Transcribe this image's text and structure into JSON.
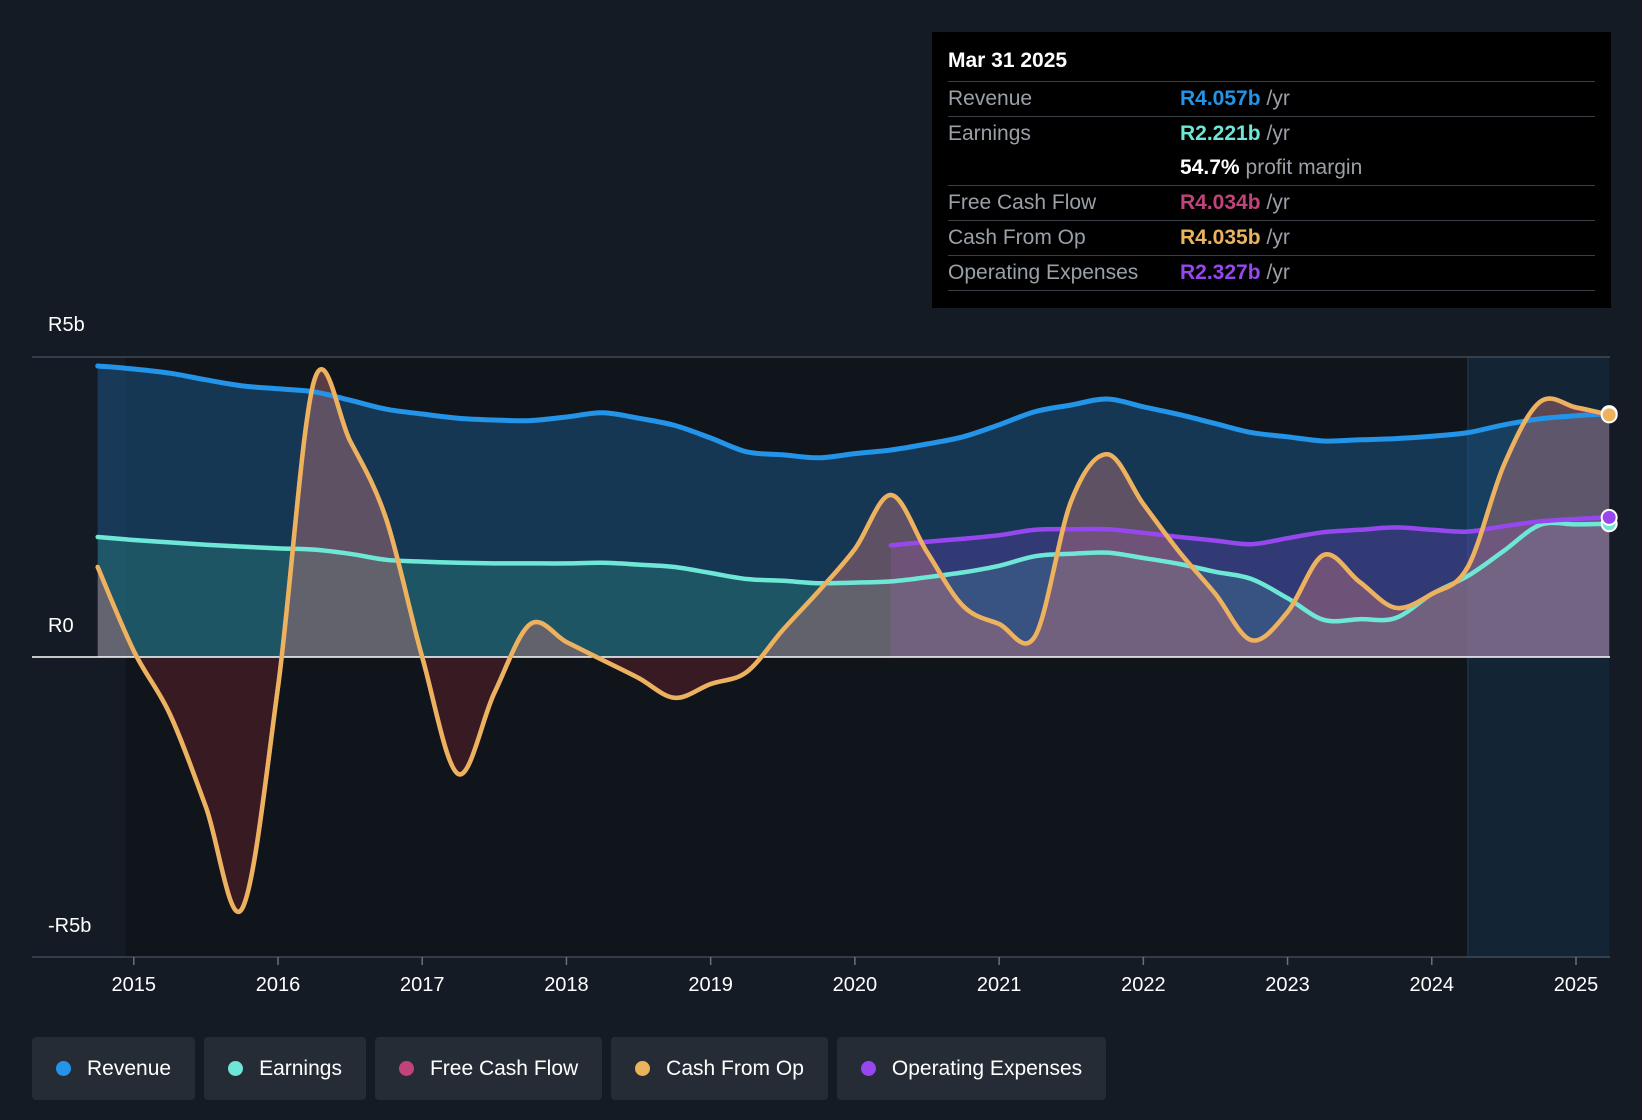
{
  "colors": {
    "revenue": "#2394e8",
    "earnings": "#6ee7d6",
    "fcf": "#c0437a",
    "cfo": "#ecb35f",
    "opex": "#9747ee"
  },
  "tooltip": {
    "date": "Mar 31 2025",
    "rows": [
      {
        "label": "Revenue",
        "value": "R4.057b",
        "unit": "/yr"
      },
      {
        "label": "Earnings",
        "value": "R2.221b",
        "unit": "/yr"
      },
      {
        "label": "",
        "value": "54.7%",
        "unit": "profit margin"
      },
      {
        "label": "Free Cash Flow",
        "value": "R4.034b",
        "unit": "/yr"
      },
      {
        "label": "Cash From Op",
        "value": "R4.035b",
        "unit": "/yr"
      },
      {
        "label": "Operating Expenses",
        "value": "R2.327b",
        "unit": "/yr"
      }
    ]
  },
  "legend": [
    "Revenue",
    "Earnings",
    "Free Cash Flow",
    "Cash From Op",
    "Operating Expenses"
  ],
  "chart_data": {
    "type": "line",
    "title": "",
    "y_tick_labels": [
      "R5b",
      "R0",
      "-R5b"
    ],
    "y_ticks": [
      5,
      0,
      -5
    ],
    "ylim": [
      -5,
      5
    ],
    "xlim": [
      2014.5,
      2025.23
    ],
    "x_ticks": [
      2015,
      2016,
      2017,
      2018,
      2019,
      2020,
      2021,
      2022,
      2023,
      2024,
      2025
    ],
    "x_tick_labels": [
      "2015",
      "2016",
      "2017",
      "2018",
      "2019",
      "2020",
      "2021",
      "2022",
      "2023",
      "2024",
      "2025"
    ],
    "forecast_start": 2024.25,
    "series": [
      {
        "name": "Revenue",
        "key": "revenue",
        "points": [
          [
            2014.75,
            4.85
          ],
          [
            2015.0,
            4.8
          ],
          [
            2015.25,
            4.73
          ],
          [
            2015.5,
            4.62
          ],
          [
            2015.75,
            4.52
          ],
          [
            2016.0,
            4.47
          ],
          [
            2016.25,
            4.42
          ],
          [
            2016.5,
            4.28
          ],
          [
            2016.75,
            4.13
          ],
          [
            2017.0,
            4.05
          ],
          [
            2017.25,
            3.98
          ],
          [
            2017.5,
            3.95
          ],
          [
            2017.75,
            3.94
          ],
          [
            2018.0,
            4.0
          ],
          [
            2018.25,
            4.07
          ],
          [
            2018.5,
            3.98
          ],
          [
            2018.75,
            3.86
          ],
          [
            2019.0,
            3.65
          ],
          [
            2019.25,
            3.42
          ],
          [
            2019.5,
            3.37
          ],
          [
            2019.75,
            3.32
          ],
          [
            2020.0,
            3.39
          ],
          [
            2020.25,
            3.45
          ],
          [
            2020.5,
            3.55
          ],
          [
            2020.75,
            3.67
          ],
          [
            2021.0,
            3.87
          ],
          [
            2021.25,
            4.09
          ],
          [
            2021.5,
            4.2
          ],
          [
            2021.75,
            4.3
          ],
          [
            2022.0,
            4.17
          ],
          [
            2022.25,
            4.04
          ],
          [
            2022.5,
            3.89
          ],
          [
            2022.75,
            3.74
          ],
          [
            2023.0,
            3.67
          ],
          [
            2023.25,
            3.6
          ],
          [
            2023.5,
            3.62
          ],
          [
            2023.75,
            3.64
          ],
          [
            2024.0,
            3.68
          ],
          [
            2024.25,
            3.74
          ],
          [
            2024.5,
            3.87
          ],
          [
            2024.75,
            3.97
          ],
          [
            2025.0,
            4.02
          ],
          [
            2025.23,
            4.057
          ]
        ]
      },
      {
        "name": "Earnings",
        "key": "earnings",
        "points": [
          [
            2014.75,
            2.0
          ],
          [
            2015.0,
            1.95
          ],
          [
            2015.25,
            1.91
          ],
          [
            2015.5,
            1.87
          ],
          [
            2015.75,
            1.84
          ],
          [
            2016.0,
            1.81
          ],
          [
            2016.25,
            1.79
          ],
          [
            2016.5,
            1.72
          ],
          [
            2016.75,
            1.62
          ],
          [
            2017.0,
            1.59
          ],
          [
            2017.25,
            1.57
          ],
          [
            2017.5,
            1.56
          ],
          [
            2017.75,
            1.56
          ],
          [
            2018.0,
            1.56
          ],
          [
            2018.25,
            1.57
          ],
          [
            2018.5,
            1.54
          ],
          [
            2018.75,
            1.5
          ],
          [
            2019.0,
            1.4
          ],
          [
            2019.25,
            1.3
          ],
          [
            2019.5,
            1.27
          ],
          [
            2019.75,
            1.23
          ],
          [
            2020.0,
            1.24
          ],
          [
            2020.25,
            1.26
          ],
          [
            2020.5,
            1.33
          ],
          [
            2020.75,
            1.41
          ],
          [
            2021.0,
            1.52
          ],
          [
            2021.25,
            1.68
          ],
          [
            2021.5,
            1.72
          ],
          [
            2021.75,
            1.74
          ],
          [
            2022.0,
            1.65
          ],
          [
            2022.25,
            1.55
          ],
          [
            2022.5,
            1.42
          ],
          [
            2022.75,
            1.3
          ],
          [
            2023.0,
            0.98
          ],
          [
            2023.25,
            0.62
          ],
          [
            2023.5,
            0.63
          ],
          [
            2023.75,
            0.65
          ],
          [
            2024.0,
            1.05
          ],
          [
            2024.25,
            1.35
          ],
          [
            2024.5,
            1.77
          ],
          [
            2024.75,
            2.2
          ],
          [
            2025.0,
            2.21
          ],
          [
            2025.23,
            2.221
          ]
        ]
      },
      {
        "name": "Free Cash Flow",
        "key": "fcf",
        "points": [
          [
            2014.75,
            1.5
          ],
          [
            2015.0,
            0.1
          ],
          [
            2015.25,
            -0.95
          ],
          [
            2015.5,
            -2.5
          ],
          [
            2015.75,
            -4.2
          ],
          [
            2016.0,
            -0.5
          ],
          [
            2016.25,
            4.6
          ],
          [
            2016.5,
            3.6
          ],
          [
            2016.75,
            2.3
          ],
          [
            2017.0,
            0.0
          ],
          [
            2017.25,
            -1.95
          ],
          [
            2017.5,
            -0.6
          ],
          [
            2017.75,
            0.55
          ],
          [
            2018.0,
            0.25
          ],
          [
            2018.25,
            -0.05
          ],
          [
            2018.5,
            -0.35
          ],
          [
            2018.75,
            -0.68
          ],
          [
            2019.0,
            -0.45
          ],
          [
            2019.25,
            -0.25
          ],
          [
            2019.5,
            0.45
          ],
          [
            2019.75,
            1.1
          ],
          [
            2020.0,
            1.8
          ],
          [
            2020.25,
            2.7
          ],
          [
            2020.5,
            1.75
          ],
          [
            2020.75,
            0.85
          ],
          [
            2021.0,
            0.55
          ],
          [
            2021.25,
            0.35
          ],
          [
            2021.5,
            2.6
          ],
          [
            2021.75,
            3.38
          ],
          [
            2022.0,
            2.55
          ],
          [
            2022.25,
            1.75
          ],
          [
            2022.5,
            1.05
          ],
          [
            2022.75,
            0.28
          ],
          [
            2023.0,
            0.75
          ],
          [
            2023.25,
            1.7
          ],
          [
            2023.5,
            1.25
          ],
          [
            2023.75,
            0.82
          ],
          [
            2024.0,
            1.05
          ],
          [
            2024.25,
            1.5
          ],
          [
            2024.5,
            3.2
          ],
          [
            2024.75,
            4.25
          ],
          [
            2025.0,
            4.15
          ],
          [
            2025.23,
            4.034
          ]
        ]
      },
      {
        "name": "Cash From Op",
        "key": "cfo",
        "points": [
          [
            2014.75,
            1.5
          ],
          [
            2015.0,
            0.1
          ],
          [
            2015.25,
            -0.95
          ],
          [
            2015.5,
            -2.5
          ],
          [
            2015.75,
            -4.2
          ],
          [
            2016.0,
            -0.5
          ],
          [
            2016.25,
            4.6
          ],
          [
            2016.5,
            3.6
          ],
          [
            2016.75,
            2.3
          ],
          [
            2017.0,
            0.0
          ],
          [
            2017.25,
            -1.95
          ],
          [
            2017.5,
            -0.6
          ],
          [
            2017.75,
            0.55
          ],
          [
            2018.0,
            0.25
          ],
          [
            2018.25,
            -0.05
          ],
          [
            2018.5,
            -0.35
          ],
          [
            2018.75,
            -0.68
          ],
          [
            2019.0,
            -0.45
          ],
          [
            2019.25,
            -0.25
          ],
          [
            2019.5,
            0.45
          ],
          [
            2019.75,
            1.1
          ],
          [
            2020.0,
            1.8
          ],
          [
            2020.25,
            2.7
          ],
          [
            2020.5,
            1.75
          ],
          [
            2020.75,
            0.85
          ],
          [
            2021.0,
            0.55
          ],
          [
            2021.25,
            0.35
          ],
          [
            2021.5,
            2.6
          ],
          [
            2021.75,
            3.38
          ],
          [
            2022.0,
            2.55
          ],
          [
            2022.25,
            1.75
          ],
          [
            2022.5,
            1.05
          ],
          [
            2022.75,
            0.28
          ],
          [
            2023.0,
            0.75
          ],
          [
            2023.25,
            1.7
          ],
          [
            2023.5,
            1.25
          ],
          [
            2023.75,
            0.82
          ],
          [
            2024.0,
            1.05
          ],
          [
            2024.25,
            1.5
          ],
          [
            2024.5,
            3.2
          ],
          [
            2024.75,
            4.25
          ],
          [
            2025.0,
            4.16
          ],
          [
            2025.23,
            4.035
          ]
        ]
      },
      {
        "name": "Operating Expenses",
        "key": "opex",
        "points": [
          [
            2020.25,
            1.86
          ],
          [
            2020.5,
            1.92
          ],
          [
            2020.75,
            1.97
          ],
          [
            2021.0,
            2.03
          ],
          [
            2021.25,
            2.12
          ],
          [
            2021.5,
            2.13
          ],
          [
            2021.75,
            2.13
          ],
          [
            2022.0,
            2.07
          ],
          [
            2022.25,
            2.0
          ],
          [
            2022.5,
            1.94
          ],
          [
            2022.75,
            1.88
          ],
          [
            2023.0,
            1.98
          ],
          [
            2023.25,
            2.08
          ],
          [
            2023.5,
            2.12
          ],
          [
            2023.75,
            2.16
          ],
          [
            2024.0,
            2.12
          ],
          [
            2024.25,
            2.09
          ],
          [
            2024.5,
            2.18
          ],
          [
            2024.75,
            2.26
          ],
          [
            2025.0,
            2.3
          ],
          [
            2025.23,
            2.327
          ]
        ]
      }
    ]
  }
}
